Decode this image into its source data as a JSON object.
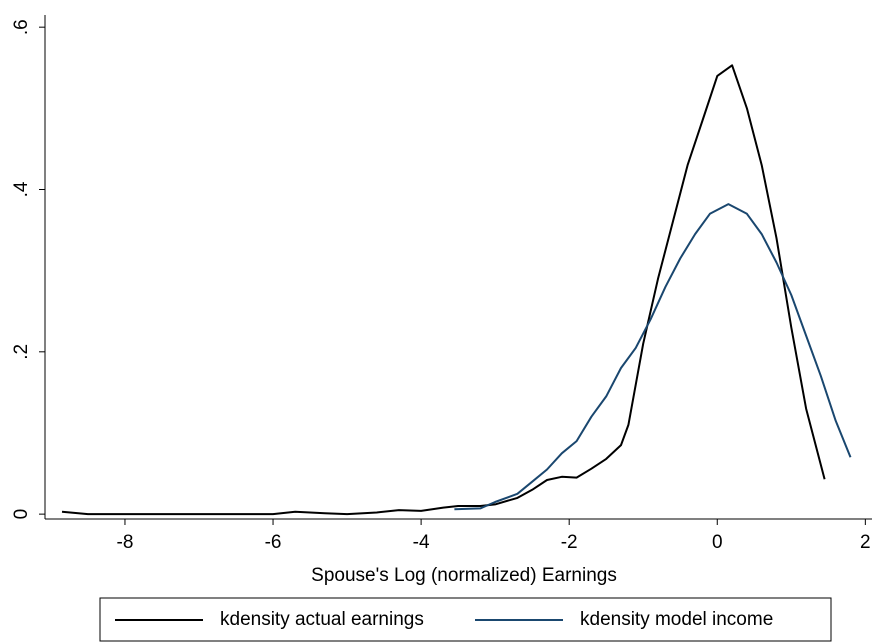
{
  "chart_data": {
    "type": "line",
    "x_label": "Spouse's Log (normalized) Earnings",
    "xlim": [
      -9.08,
      2.09
    ],
    "ylim": [
      -0.006,
      0.615
    ],
    "xticks": [
      -8,
      -6,
      -4,
      -2,
      0,
      2
    ],
    "yticks": [
      0,
      {
        "value": 0.2,
        "label": ".2"
      },
      {
        "value": 0.4,
        "label": ".4"
      },
      {
        "value": 0.6,
        "label": ".6"
      }
    ],
    "legend": "bottom",
    "series": [
      {
        "name": "kdensity actual earnings",
        "color": "#000000",
        "x": [
          -8.85,
          -8.5,
          -8,
          -7.5,
          -7,
          -6.5,
          -6,
          -5.7,
          -5.3,
          -5,
          -4.6,
          -4.3,
          -4,
          -3.7,
          -3.5,
          -3.2,
          -3,
          -2.7,
          -2.5,
          -2.3,
          -2.1,
          -1.9,
          -1.7,
          -1.5,
          -1.3,
          -1.2,
          -1.1,
          -1.0,
          -0.8,
          -0.6,
          -0.4,
          -0.2,
          0,
          0.2,
          0.4,
          0.6,
          0.8,
          1.0,
          1.2,
          1.45
        ],
        "values": [
          0.003,
          0.0,
          0.0,
          0.0,
          0.0,
          0.0,
          0.0,
          0.003,
          0.001,
          0.0,
          0.002,
          0.005,
          0.004,
          0.008,
          0.01,
          0.01,
          0.012,
          0.02,
          0.03,
          0.042,
          0.046,
          0.045,
          0.056,
          0.068,
          0.085,
          0.11,
          0.16,
          0.21,
          0.29,
          0.36,
          0.43,
          0.485,
          0.54,
          0.553,
          0.5,
          0.43,
          0.34,
          0.23,
          0.13,
          0.043
        ]
      },
      {
        "name": "kdensity model income",
        "color": "#1a476f",
        "x": [
          -3.55,
          -3.2,
          -3,
          -2.7,
          -2.5,
          -2.3,
          -2.1,
          -1.9,
          -1.7,
          -1.5,
          -1.3,
          -1.1,
          -0.9,
          -0.7,
          -0.5,
          -0.3,
          -0.1,
          0.15,
          0.4,
          0.6,
          0.8,
          1.0,
          1.2,
          1.4,
          1.6,
          1.8
        ],
        "values": [
          0.006,
          0.007,
          0.015,
          0.025,
          0.04,
          0.055,
          0.075,
          0.09,
          0.12,
          0.145,
          0.18,
          0.205,
          0.24,
          0.28,
          0.315,
          0.345,
          0.37,
          0.382,
          0.37,
          0.345,
          0.31,
          0.27,
          0.22,
          0.17,
          0.115,
          0.07
        ]
      }
    ]
  }
}
